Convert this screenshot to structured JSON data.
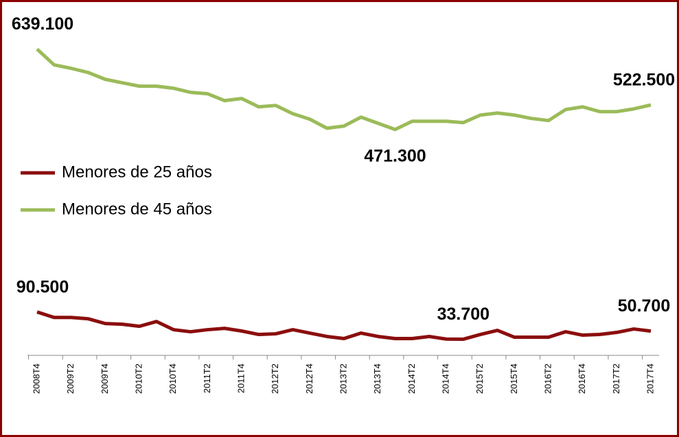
{
  "chart_data": {
    "type": "line",
    "categories": [
      "2008T4",
      null,
      "2009T2",
      null,
      "2009T4",
      null,
      "2010T2",
      null,
      "2010T4",
      null,
      "2011T2",
      null,
      "2011T4",
      null,
      "2012T2",
      null,
      "2012T4",
      null,
      "2013T2",
      null,
      "2013T4",
      null,
      "2014T2",
      null,
      "2014T4",
      null,
      "2015T2",
      null,
      "2015T4",
      null,
      "2016T2",
      null,
      "2016T4",
      null,
      "2017T2",
      null,
      "2017T4"
    ],
    "series": [
      {
        "name": "Menores de 25 años",
        "color": "#8b0e0e",
        "values": [
          90500,
          79100,
          79100,
          76300,
          66400,
          64900,
          60700,
          70600,
          53600,
          49300,
          53600,
          56400,
          50800,
          43600,
          45000,
          53600,
          46500,
          39400,
          35100,
          46500,
          39400,
          35100,
          35100,
          39400,
          34000,
          33700,
          43600,
          52100,
          37900,
          37900,
          37900,
          49300,
          42200,
          43600,
          47900,
          55000,
          50700
        ],
        "value_labels": [
          "90.500",
          null,
          null,
          null,
          null,
          null,
          null,
          null,
          null,
          null,
          null,
          null,
          null,
          null,
          null,
          null,
          null,
          null,
          null,
          null,
          null,
          null,
          null,
          null,
          null,
          "33.700",
          null,
          null,
          null,
          null,
          null,
          null,
          null,
          null,
          null,
          null,
          "50.700"
        ]
      },
      {
        "name": "Menores de 45 años",
        "color": "#9bbb59",
        "values": [
          639100,
          606100,
          598900,
          590300,
          576000,
          568800,
          561700,
          561700,
          557400,
          548800,
          545900,
          531600,
          535900,
          518600,
          521500,
          504300,
          492800,
          474000,
          478500,
          497100,
          484200,
          471300,
          488500,
          488500,
          488500,
          485700,
          501400,
          505700,
          501400,
          494300,
          490000,
          512900,
          518600,
          508600,
          508600,
          514300,
          522500
        ],
        "value_labels": [
          "639.100",
          null,
          null,
          null,
          null,
          null,
          null,
          null,
          null,
          null,
          null,
          null,
          null,
          null,
          null,
          null,
          null,
          null,
          null,
          null,
          null,
          "471.300",
          null,
          null,
          null,
          null,
          null,
          null,
          null,
          null,
          null,
          null,
          null,
          null,
          null,
          null,
          "522.500"
        ]
      }
    ],
    "ylim": [
      0,
      700000
    ],
    "legend": "left"
  }
}
